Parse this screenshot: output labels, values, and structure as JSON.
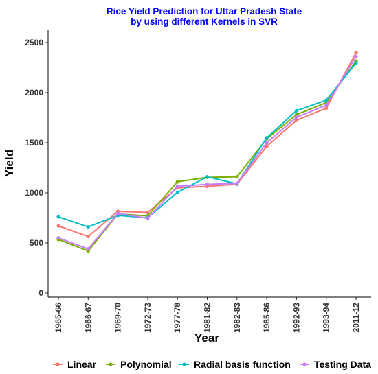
{
  "chart_data": {
    "type": "line",
    "title_line1": "Rice Yield Prediction for Uttar Pradesh State",
    "title_line2": "by using different Kernels in SVR",
    "xlabel": "Year",
    "ylabel": "Yield",
    "ylim": [
      0,
      2600
    ],
    "yticks": [
      0,
      500,
      1000,
      1500,
      2000,
      2500
    ],
    "categories": [
      "1965-66",
      "1966-67",
      "1969-70",
      "1972-73",
      "1977-78",
      "1981-82",
      "1982-83",
      "1985-86",
      "1992-93",
      "1993-94",
      "2011-12"
    ],
    "series": [
      {
        "name": "Linear",
        "color": "#f8766d",
        "values": [
          670,
          565,
          815,
          805,
          1050,
          1065,
          1085,
          1465,
          1725,
          1845,
          2400
        ]
      },
      {
        "name": "Polynomial",
        "color": "#7cae00",
        "values": [
          535,
          420,
          790,
          770,
          1110,
          1155,
          1160,
          1540,
          1780,
          1900,
          2315
        ]
      },
      {
        "name": "Radial basis function",
        "color": "#00bfc4",
        "values": [
          760,
          660,
          775,
          750,
          1005,
          1160,
          1090,
          1550,
          1820,
          1925,
          2295
        ]
      },
      {
        "name": "Testing Data",
        "color": "#c77cff",
        "values": [
          550,
          440,
          795,
          745,
          1065,
          1085,
          1095,
          1500,
          1755,
          1875,
          2360
        ]
      }
    ],
    "grid": false,
    "legend_position": "bottom"
  }
}
